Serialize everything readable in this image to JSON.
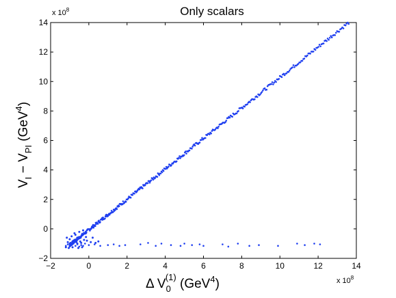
{
  "chart_data": {
    "type": "scatter",
    "title": "Only scalars",
    "xlabel": {
      "main": "Δ V",
      "sub": "0",
      "sup": "(1)",
      "unit": " (GeV",
      "unit_sup": "4",
      "close": ")"
    },
    "ylabel": {
      "p1": "V",
      "s1": "I",
      "p2": " − V",
      "s2": "PI",
      "p3": " (GeV",
      "sup": "4",
      "p4": ")"
    },
    "x_multiplier": "x 10",
    "x_multiplier_exp": "8",
    "y_multiplier": "x 10",
    "y_multiplier_exp": "8",
    "xlim": [
      -2,
      14
    ],
    "ylim": [
      -2,
      14
    ],
    "x_ticks": [
      "−2",
      "0",
      "2",
      "4",
      "6",
      "8",
      "10",
      "12",
      "14"
    ],
    "y_ticks": [
      "−2",
      "0",
      "2",
      "4",
      "6",
      "8",
      "10",
      "12",
      "14"
    ],
    "grid": false,
    "marker_color": "#1f3ff0",
    "diagonal_branch": {
      "from": [
        -1.0,
        -1.1
      ],
      "to": [
        13.6,
        14.0
      ]
    },
    "flat_branch_points": [
      [
        -1.2,
        -1.15
      ],
      [
        -1.1,
        -1.05
      ],
      [
        -1.0,
        -1.2
      ],
      [
        -0.9,
        -1.1
      ],
      [
        -0.8,
        -1.0
      ],
      [
        -0.7,
        -1.15
      ],
      [
        -0.6,
        -1.05
      ],
      [
        -0.5,
        -1.2
      ],
      [
        -0.4,
        -1.1
      ],
      [
        -0.3,
        -1.15
      ],
      [
        -0.2,
        -1.0
      ],
      [
        0.0,
        -1.1
      ],
      [
        0.3,
        -1.05
      ],
      [
        0.6,
        -1.15
      ],
      [
        1.0,
        -1.1
      ],
      [
        1.3,
        -1.05
      ],
      [
        1.6,
        -1.15
      ],
      [
        1.9,
        -1.1
      ],
      [
        2.7,
        -1.05
      ],
      [
        3.1,
        -0.95
      ],
      [
        3.5,
        -1.15
      ],
      [
        3.8,
        -1.0
      ],
      [
        4.3,
        -1.1
      ],
      [
        4.8,
        -1.15
      ],
      [
        5.0,
        -1.0
      ],
      [
        5.4,
        -1.1
      ],
      [
        5.8,
        -1.05
      ],
      [
        6.0,
        -1.15
      ],
      [
        7.0,
        -1.05
      ],
      [
        7.3,
        -1.2
      ],
      [
        7.8,
        -1.0
      ],
      [
        8.4,
        -1.15
      ],
      [
        8.9,
        -1.1
      ],
      [
        9.9,
        -1.15
      ],
      [
        10.9,
        -1.0
      ],
      [
        11.3,
        -1.1
      ],
      [
        11.8,
        -1.0
      ],
      [
        12.1,
        -1.05
      ]
    ],
    "cluster_points": [
      [
        -1.1,
        -0.9
      ],
      [
        -1.0,
        -0.7
      ],
      [
        -0.9,
        -0.5
      ],
      [
        -0.8,
        -0.8
      ],
      [
        -0.7,
        -0.4
      ],
      [
        -0.6,
        -0.6
      ],
      [
        -0.5,
        -0.2
      ],
      [
        -0.4,
        -0.5
      ],
      [
        -0.3,
        -0.1
      ],
      [
        -0.2,
        -0.3
      ],
      [
        -1.2,
        -1.25
      ],
      [
        -1.05,
        -1.3
      ],
      [
        -0.95,
        -0.95
      ],
      [
        -0.85,
        -1.25
      ],
      [
        -0.65,
        -0.9
      ],
      [
        -0.55,
        -1.3
      ],
      [
        -0.45,
        -0.85
      ],
      [
        -0.35,
        -1.25
      ],
      [
        -0.25,
        -0.75
      ],
      [
        -0.15,
        -0.55
      ],
      [
        -1.15,
        -0.6
      ],
      [
        -0.75,
        -0.3
      ],
      [
        -0.6,
        -1.0
      ],
      [
        -0.4,
        -0.95
      ],
      [
        -0.1,
        -0.8
      ],
      [
        0.1,
        -0.9
      ],
      [
        0.2,
        -0.6
      ],
      [
        0.35,
        -0.95
      ],
      [
        0.5,
        -0.85
      ],
      [
        -1.0,
        -1.0
      ]
    ]
  }
}
